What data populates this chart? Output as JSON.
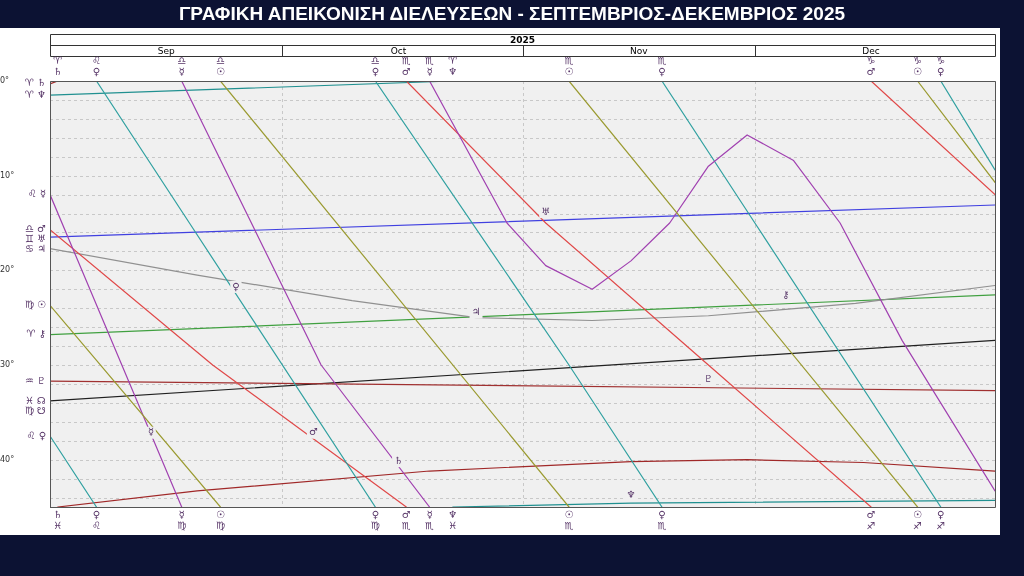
{
  "chart_data": {
    "type": "line",
    "title": "ΓΡΑΦΙΚΗ ΑΠΕΙΚΟΝΙΣΗ ΔΙΕΛΕΥΣΕΩΝ - ΣΕΠΤΕΜΒΡΙΟΣ-ΔΕΚΕΜΒΡΙΟΣ 2025",
    "xlabel": "2025",
    "xlim": [
      "2025-09-01",
      "2026-01-01"
    ],
    "xticks": [
      {
        "value": "2025-09-01",
        "label": null
      },
      {
        "value": "2025-09-16",
        "label": "Sep"
      },
      {
        "value": "2025-10-01",
        "label": null
      },
      {
        "value": "2025-10-16",
        "label": "Oct"
      },
      {
        "value": "2025-11-01",
        "label": null
      },
      {
        "value": "2025-11-16",
        "label": "Nov"
      },
      {
        "value": "2025-12-01",
        "label": null
      },
      {
        "value": "2025-12-16",
        "label": "Dec"
      },
      {
        "value": "2026-01-01",
        "label": null
      }
    ],
    "ylim": [
      45,
      0
    ],
    "yticks": [
      {
        "value": 0,
        "label": "0°"
      },
      {
        "value": 2,
        "label": null
      },
      {
        "value": 4,
        "label": null
      },
      {
        "value": 6,
        "label": null
      },
      {
        "value": 8,
        "label": null
      },
      {
        "value": 10,
        "label": "10°"
      },
      {
        "value": 12,
        "label": null
      },
      {
        "value": 14,
        "label": null
      },
      {
        "value": 16,
        "label": null
      },
      {
        "value": 18,
        "label": null
      },
      {
        "value": 20,
        "label": "20°"
      },
      {
        "value": 22,
        "label": null
      },
      {
        "value": 24,
        "label": null
      },
      {
        "value": 26,
        "label": null
      },
      {
        "value": 28,
        "label": null
      },
      {
        "value": 30,
        "label": "30°"
      },
      {
        "value": 32,
        "label": null
      },
      {
        "value": 34,
        "label": null
      },
      {
        "value": 36,
        "label": null
      },
      {
        "value": 38,
        "label": null
      },
      {
        "value": 40,
        "label": "40°"
      },
      {
        "value": 42,
        "label": null
      },
      {
        "value": 44,
        "label": null
      }
    ],
    "grid": true,
    "legend": false,
    "marker": "none",
    "line_style": "solid",
    "series": [
      {
        "color": "#9a9a30",
        "x": [
          "2025-09-01",
          "2025-09-23"
        ],
        "values": [
          23.7,
          45
        ]
      },
      {
        "color": "#9a9a30",
        "x": [
          "2025-09-23",
          "2025-11-07"
        ],
        "values": [
          0,
          45
        ]
      },
      {
        "color": "#9a9a30",
        "x": [
          "2025-11-07",
          "2025-12-22"
        ],
        "values": [
          0,
          45
        ]
      },
      {
        "color": "#9a9a30",
        "x": [
          "2025-12-22",
          "2026-01-01"
        ],
        "values": [
          0,
          10.7
        ]
      },
      {
        "color": "#a040b0",
        "x": [
          "2025-09-01",
          "2025-09-18"
        ],
        "values": [
          12,
          45
        ]
      },
      {
        "color": "#a040b0",
        "x": [
          "2025-09-18",
          "2025-10-06",
          "2025-10-20"
        ],
        "values": [
          0,
          30,
          45
        ]
      },
      {
        "color": "#a040b0",
        "x": [
          "2025-10-20",
          "2025-10-30",
          "2025-11-04",
          "2025-11-10",
          "2025-11-15",
          "2025-11-20",
          "2025-11-25",
          "2025-11-30",
          "2025-12-06",
          "2025-12-12",
          "2025-12-20",
          "2026-01-01"
        ],
        "values": [
          0,
          15,
          19.5,
          22,
          19,
          15,
          9,
          5.7,
          8.4,
          15,
          27.4,
          43.3
        ]
      },
      {
        "color": "#30a0a0",
        "x": [
          "2025-09-01",
          "2025-09-07"
        ],
        "values": [
          37.5,
          45
        ]
      },
      {
        "color": "#30a0a0",
        "x": [
          "2025-09-07",
          "2025-09-19",
          "2025-10-13"
        ],
        "values": [
          0,
          15,
          45
        ]
      },
      {
        "color": "#30a0a0",
        "x": [
          "2025-10-13",
          "2025-11-07",
          "2025-11-19"
        ],
        "values": [
          0,
          30,
          45
        ]
      },
      {
        "color": "#30a0a0",
        "x": [
          "2025-11-19",
          "2025-12-01",
          "2025-12-25"
        ],
        "values": [
          0,
          15,
          45
        ]
      },
      {
        "color": "#30a0a0",
        "x": [
          "2025-12-25",
          "2026-01-01"
        ],
        "values": [
          0,
          9.4
        ]
      },
      {
        "color": "#e04848",
        "x": [
          "2025-09-01",
          "2025-09-22",
          "2025-10-17"
        ],
        "values": [
          15.7,
          30,
          45
        ]
      },
      {
        "color": "#e04848",
        "x": [
          "2025-10-17",
          "2025-11-04",
          "2025-11-25",
          "2025-12-16"
        ],
        "values": [
          0,
          15,
          30,
          45
        ]
      },
      {
        "color": "#e04848",
        "x": [
          "2025-12-16",
          "2026-01-01"
        ],
        "values": [
          0,
          12
        ]
      },
      {
        "color": "#909090",
        "x": [
          "2025-09-01",
          "2025-09-20",
          "2025-10-10",
          "2025-10-26",
          "2025-11-10",
          "2025-11-25",
          "2025-12-14",
          "2026-01-01"
        ],
        "values": [
          17.7,
          20.5,
          23.2,
          25,
          25.3,
          24.8,
          23.5,
          21.6
        ]
      },
      {
        "color": "#a02828",
        "x": [
          "2025-09-01",
          "2025-09-02"
        ],
        "values": [
          0.3,
          0
        ]
      },
      {
        "color": "#a02828",
        "x": [
          "2025-09-02",
          "2025-09-20",
          "2025-10-20",
          "2025-11-15",
          "2025-11-30",
          "2025-12-15",
          "2026-01-01"
        ],
        "values": [
          45,
          43.3,
          41.2,
          40.2,
          40,
          40.3,
          41.2
        ]
      },
      {
        "color": "#4040e0",
        "x": [
          "2025-09-01",
          "2026-01-01"
        ],
        "values": [
          16.5,
          13.1
        ]
      },
      {
        "color": "#209090",
        "x": [
          "2025-09-01",
          "2025-10-23"
        ],
        "values": [
          1.5,
          0
        ]
      },
      {
        "color": "#209090",
        "x": [
          "2025-10-23",
          "2025-11-15",
          "2026-01-01"
        ],
        "values": [
          45,
          44.6,
          44.3
        ]
      },
      {
        "color": "#a03030",
        "x": [
          "2025-09-01",
          "2026-01-01"
        ],
        "values": [
          31.7,
          32.7
        ]
      },
      {
        "color": "#40a040",
        "x": [
          "2025-09-01",
          "2026-01-01"
        ],
        "values": [
          26.8,
          22.6
        ]
      },
      {
        "color": "#202020",
        "x": [
          "2025-09-01",
          "2026-01-01"
        ],
        "values": [
          33.8,
          27.4
        ]
      }
    ],
    "annotations": [
      {
        "text": "♈ ♄",
        "x": "2025-09-02",
        "y": 0
      },
      {
        "text": "♌ ♀",
        "x": "2025-09-07",
        "y": 0
      },
      {
        "text": "♎ ☿",
        "x": "2025-09-18",
        "y": 0
      },
      {
        "text": "♎ ☉",
        "x": "2025-09-23",
        "y": 0
      },
      {
        "text": "♎ ♀",
        "x": "2025-10-13",
        "y": 0
      },
      {
        "text": "♏ ♂",
        "x": "2025-10-17",
        "y": 0
      },
      {
        "text": "♏ ☿",
        "x": "2025-10-20",
        "y": 0
      },
      {
        "text": "♈ ♆",
        "x": "2025-10-23",
        "y": 0
      },
      {
        "text": "♏ ☉",
        "x": "2025-11-07",
        "y": 0
      },
      {
        "text": "♏ ♀",
        "x": "2025-11-19",
        "y": 0
      },
      {
        "text": "♑ ♂",
        "x": "2025-12-16",
        "y": 0
      },
      {
        "text": "♑ ☉",
        "x": "2025-12-22",
        "y": 0
      },
      {
        "text": "♑ ♀",
        "x": "2025-12-25",
        "y": 0
      },
      {
        "text": "♄ ♓",
        "x": "2025-09-02",
        "y": 45
      },
      {
        "text": "♀ ♌",
        "x": "2025-09-07",
        "y": 45
      },
      {
        "text": "☿ ♍",
        "x": "2025-09-18",
        "y": 45
      },
      {
        "text": "☉ ♍",
        "x": "2025-09-23",
        "y": 45
      },
      {
        "text": "♀ ♍",
        "x": "2025-10-13",
        "y": 45
      },
      {
        "text": "♂ ♏",
        "x": "2025-10-17",
        "y": 45
      },
      {
        "text": "☿ ♏",
        "x": "2025-10-20",
        "y": 45
      },
      {
        "text": "♆ ♓",
        "x": "2025-10-23",
        "y": 45
      },
      {
        "text": "☉ ♏",
        "x": "2025-11-07",
        "y": 45
      },
      {
        "text": "♀ ♏",
        "x": "2025-11-19",
        "y": 45
      },
      {
        "text": "♂ ♐",
        "x": "2025-12-16",
        "y": 45
      },
      {
        "text": "☉ ♐",
        "x": "2025-12-22",
        "y": 45
      },
      {
        "text": "♀ ♐",
        "x": "2025-12-25",
        "y": 45
      },
      {
        "text": "♈ ♄",
        "x": "2025-09-01",
        "y": 0.3
      },
      {
        "text": "♈ ♆",
        "x": "2025-09-01",
        "y": 1.5
      },
      {
        "text": "♌ ☿",
        "x": "2025-09-01",
        "y": 12
      },
      {
        "text": "♎ ♂",
        "x": "2025-09-01",
        "y": 15.7
      },
      {
        "text": "♊ ♅",
        "x": "2025-09-01",
        "y": 16.5
      },
      {
        "text": "♋ ♃",
        "x": "2025-09-01",
        "y": 17.7
      },
      {
        "text": "♍ ☉",
        "x": "2025-09-01",
        "y": 23.7
      },
      {
        "text": "♈ ⚷",
        "x": "2025-09-01",
        "y": 26.8
      },
      {
        "text": "♒ ♇",
        "x": "2025-09-01",
        "y": 31.7
      },
      {
        "text": "♓ ☊",
        "x": "2025-09-01",
        "y": 33.8
      },
      {
        "text": "♍ ☋",
        "x": "2025-09-01",
        "y": 33.8
      },
      {
        "text": "♌ ♀",
        "x": "2025-09-01",
        "y": 37.5
      },
      {
        "text": "☿",
        "x": "2025-09-14",
        "y": 38
      },
      {
        "text": "♂",
        "x": "2025-10-05",
        "y": 38
      },
      {
        "text": "♀",
        "x": "2025-09-25",
        "y": 22.6
      },
      {
        "text": "♄",
        "x": "2025-10-16",
        "y": 41
      },
      {
        "text": "♃",
        "x": "2025-10-26",
        "y": 25.3
      },
      {
        "text": "♆",
        "x": "2025-11-15",
        "y": 44.6
      },
      {
        "text": "♇",
        "x": "2025-11-25",
        "y": 32.4
      },
      {
        "text": "⚷",
        "x": "2025-12-05",
        "y": 23.5
      },
      {
        "text": "♅",
        "x": "2025-11-04",
        "y": 14.7
      }
    ]
  }
}
